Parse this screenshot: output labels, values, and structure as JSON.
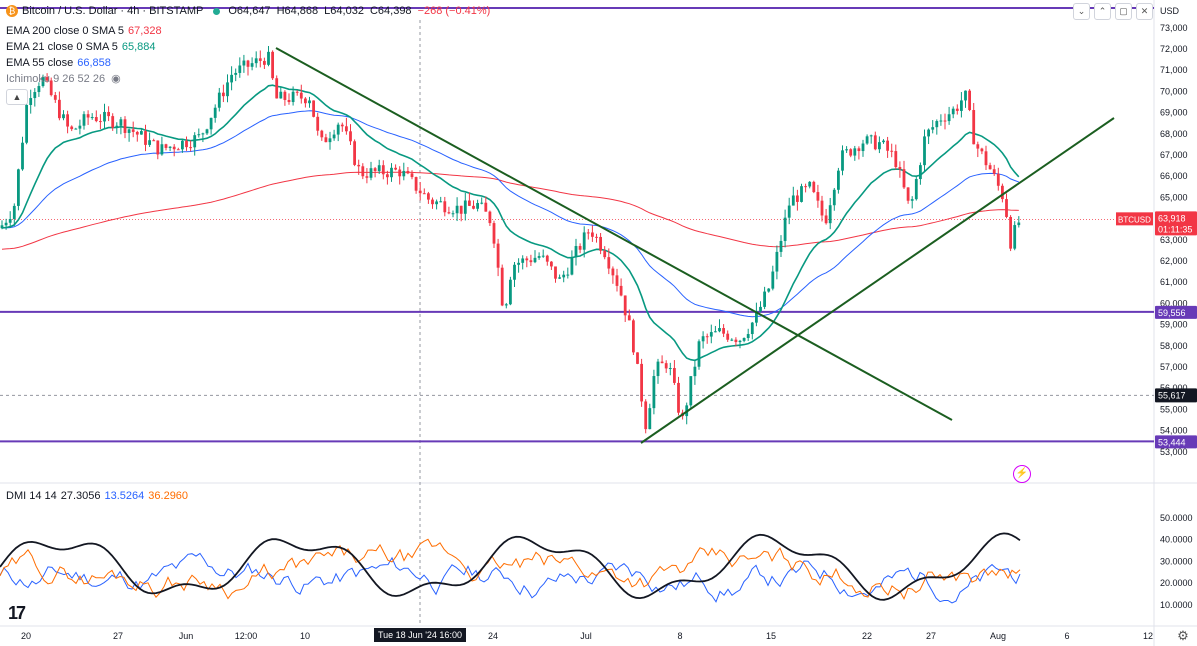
{
  "header": {
    "symbol_title": "Bitcoin / U.S. Dollar · 4h · BITSTAMP",
    "open_label": "O",
    "open": "64,647",
    "high_label": "H",
    "high": "64,868",
    "low_label": "L",
    "low": "64,032",
    "close_label": "C",
    "close": "64,398",
    "change": "−268 (−0.41%)"
  },
  "indicators": [
    {
      "label": "EMA 200 close 0 SMA 5",
      "value": "67,328",
      "color": "#f23645"
    },
    {
      "label": "EMA 21 close 0 SMA 5",
      "value": "65,884",
      "color": "#089981"
    },
    {
      "label": "EMA 55 close",
      "value": "66,858",
      "color": "#2962ff"
    },
    {
      "label": "Ichimoku 9 26 52 26",
      "value": "",
      "color": "#787b86"
    }
  ],
  "dmi": {
    "label": "DMI 14 14",
    "v1": "27.3056",
    "v2": "13.5264",
    "v3": "36.2960"
  },
  "currency": "USD",
  "badges": {
    "symbol": "BTCUSD",
    "price": "63,918",
    "countdown": "01:11:35",
    "level_top": "59,556",
    "level_bottom": "53,444",
    "crosshair": "55,617"
  },
  "cursor_date": "Tue 18 Jun '24   16:00",
  "colors": {
    "up": "#089981",
    "down": "#f23645",
    "ema200": "#f23645",
    "ema21": "#089981",
    "ema55": "#2962ff",
    "trend": "#1b5e20",
    "level": "#673ab7"
  },
  "chart_data": {
    "type": "candlestick",
    "ylim": [
      52000,
      73000
    ],
    "y_ticks": [
      "53,000",
      "54,000",
      "55,000",
      "56,000",
      "57,000",
      "58,000",
      "59,000",
      "60,000",
      "61,000",
      "62,000",
      "63,000",
      "64,000",
      "65,000",
      "66,000",
      "67,000",
      "68,000",
      "69,000",
      "70,000",
      "71,000",
      "72,000",
      "73,000"
    ],
    "x_ticks": [
      "20",
      "27",
      "Jun",
      "12:00",
      "10",
      "24",
      "Jul",
      "8",
      "15",
      "22",
      "27",
      "Aug",
      "6",
      "12"
    ],
    "horizontal_levels": [
      73000,
      59556,
      53444
    ],
    "dmi_ticks": [
      "10.0000",
      "20.0000",
      "30.0000",
      "40.0000",
      "50.0000"
    ],
    "dmi_ylim": [
      0,
      55
    ]
  }
}
